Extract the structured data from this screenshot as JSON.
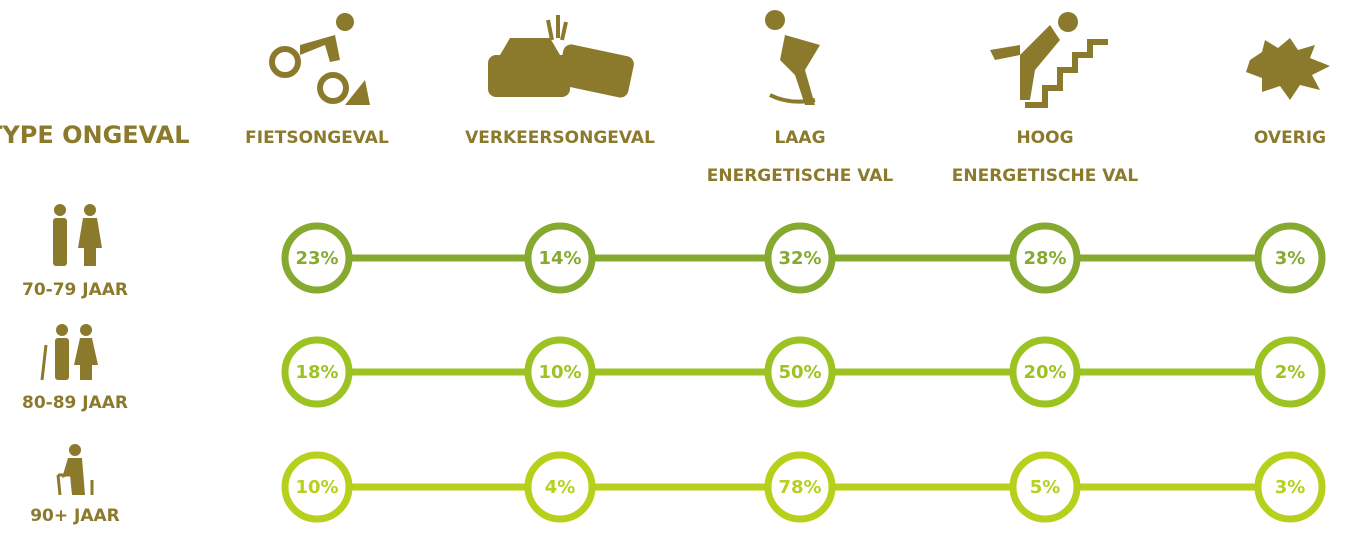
{
  "header": {
    "title": "TYPE ONGEVAL"
  },
  "columns": [
    {
      "label": [
        "FIETSONGEVAL"
      ]
    },
    {
      "label": [
        "VERKEERSONGEVAL"
      ]
    },
    {
      "label": [
        "LAAG",
        "ENERGETISCHE VAL"
      ]
    },
    {
      "label": [
        "HOOG",
        "ENERGETISCHE VAL"
      ]
    },
    {
      "label": [
        "OVERIG"
      ]
    }
  ],
  "rows": [
    {
      "label": "70-79 JAAR",
      "color": "#86a92f",
      "cells": [
        "23%",
        "14%",
        "32%",
        "28%",
        "3%"
      ]
    },
    {
      "label": "80-89 JAAR",
      "color": "#9cc321",
      "cells": [
        "18%",
        "10%",
        "50%",
        "20%",
        "2%"
      ]
    },
    {
      "label": "90+ JAAR",
      "color": "#b6d01b",
      "cells": [
        "10%",
        "4%",
        "78%",
        "5%",
        "3%"
      ]
    }
  ]
}
